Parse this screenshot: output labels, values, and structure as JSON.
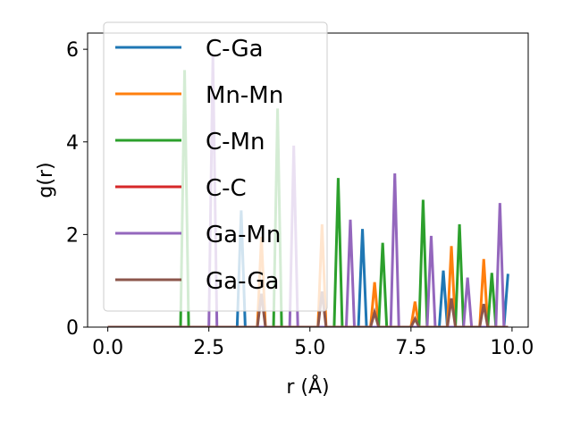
{
  "chart_data": {
    "type": "line",
    "xlabel": "r (Å)",
    "ylabel": "g(r)",
    "xlim": [
      -0.5,
      10.4
    ],
    "ylim": [
      0,
      6.35
    ],
    "xticks": [
      0.0,
      2.5,
      5.0,
      7.5,
      10.0
    ],
    "xtick_labels": [
      "0.0",
      "2.5",
      "5.0",
      "7.5",
      "10.0"
    ],
    "yticks": [
      0,
      2,
      4,
      6
    ],
    "ytick_labels": [
      "0",
      "2",
      "4",
      "6"
    ],
    "grid": false,
    "legend_position": "upper-left",
    "series": [
      {
        "name": "C-Ga",
        "color": "#1f77b4",
        "peaks": [
          [
            3.3,
            2.52
          ],
          [
            6.3,
            2.12
          ],
          [
            8.3,
            1.22
          ],
          [
            9.9,
            1.15
          ]
        ]
      },
      {
        "name": "Mn-Mn",
        "color": "#ff7f0e",
        "peaks": [
          [
            3.8,
            1.95
          ],
          [
            5.3,
            2.22
          ],
          [
            6.6,
            0.97
          ],
          [
            7.6,
            0.55
          ],
          [
            8.5,
            1.75
          ],
          [
            9.3,
            1.47
          ]
        ]
      },
      {
        "name": "C-Mn",
        "color": "#2ca02c",
        "peaks": [
          [
            1.9,
            5.55
          ],
          [
            4.2,
            4.72
          ],
          [
            5.7,
            3.22
          ],
          [
            6.8,
            1.82
          ],
          [
            7.8,
            2.75
          ],
          [
            8.7,
            2.22
          ],
          [
            9.5,
            1.17
          ]
        ]
      },
      {
        "name": "C-C",
        "color": "#d62728",
        "peaks": []
      },
      {
        "name": "Ga-Mn",
        "color": "#9467bd",
        "peaks": [
          [
            2.6,
            5.85
          ],
          [
            4.6,
            3.92
          ],
          [
            6.0,
            2.32
          ],
          [
            7.1,
            3.32
          ],
          [
            8.0,
            1.97
          ],
          [
            8.9,
            1.07
          ],
          [
            9.7,
            2.68
          ]
        ]
      },
      {
        "name": "Ga-Ga",
        "color": "#8c564b",
        "peaks": [
          [
            3.8,
            0.72
          ],
          [
            5.3,
            0.77
          ],
          [
            6.6,
            0.32
          ],
          [
            7.6,
            0.18
          ],
          [
            8.5,
            0.62
          ],
          [
            9.3,
            0.5
          ]
        ]
      }
    ]
  }
}
